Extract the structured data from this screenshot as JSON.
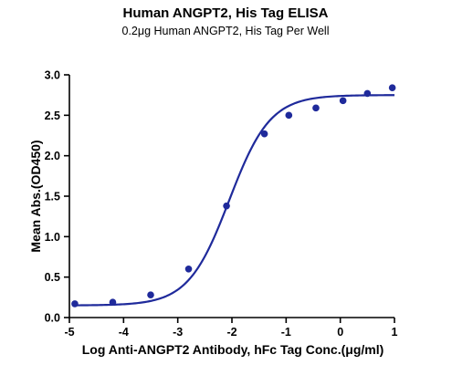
{
  "chart_data": {
    "type": "scatter",
    "title": "Human ANGPT2, His Tag ELISA",
    "subtitle": "0.2μg Human ANGPT2, His Tag Per Well",
    "xlabel": "Log Anti-ANGPT2 Antibody, hFc Tag Conc.(μg/ml)",
    "ylabel": "Mean Abs.(OD450)",
    "xlim": [
      -5,
      1
    ],
    "ylim": [
      0,
      3.0
    ],
    "x_ticks": [
      -5,
      -4,
      -3,
      -2,
      -1,
      0,
      1
    ],
    "x_tick_labels": [
      "-5",
      "-4",
      "-3",
      "-2",
      "-1",
      "0",
      "1"
    ],
    "y_ticks": [
      0,
      0.5,
      1.0,
      1.5,
      2.0,
      2.5,
      3.0
    ],
    "y_tick_labels": [
      "0.0",
      "0.5",
      "1.0",
      "1.5",
      "2.0",
      "2.5",
      "3.0"
    ],
    "grid": false,
    "legend": "none",
    "series": [
      {
        "points": [
          {
            "x": -4.9,
            "y": 0.17
          },
          {
            "x": -4.2,
            "y": 0.19
          },
          {
            "x": -3.5,
            "y": 0.28
          },
          {
            "x": -2.8,
            "y": 0.6
          },
          {
            "x": -2.1,
            "y": 1.38
          },
          {
            "x": -1.4,
            "y": 2.27
          },
          {
            "x": -0.95,
            "y": 2.5
          },
          {
            "x": -0.45,
            "y": 2.59
          },
          {
            "x": 0.05,
            "y": 2.68
          },
          {
            "x": 0.5,
            "y": 2.77
          },
          {
            "x": 0.96,
            "y": 2.84
          }
        ],
        "fit": {
          "model": "4PL",
          "bottom": 0.15,
          "top": 2.75,
          "logEC50": -2.05,
          "hill": 1.15,
          "x_from": -4.9,
          "x_to": 1.0
        }
      }
    ],
    "color": "#1F2A9B"
  }
}
